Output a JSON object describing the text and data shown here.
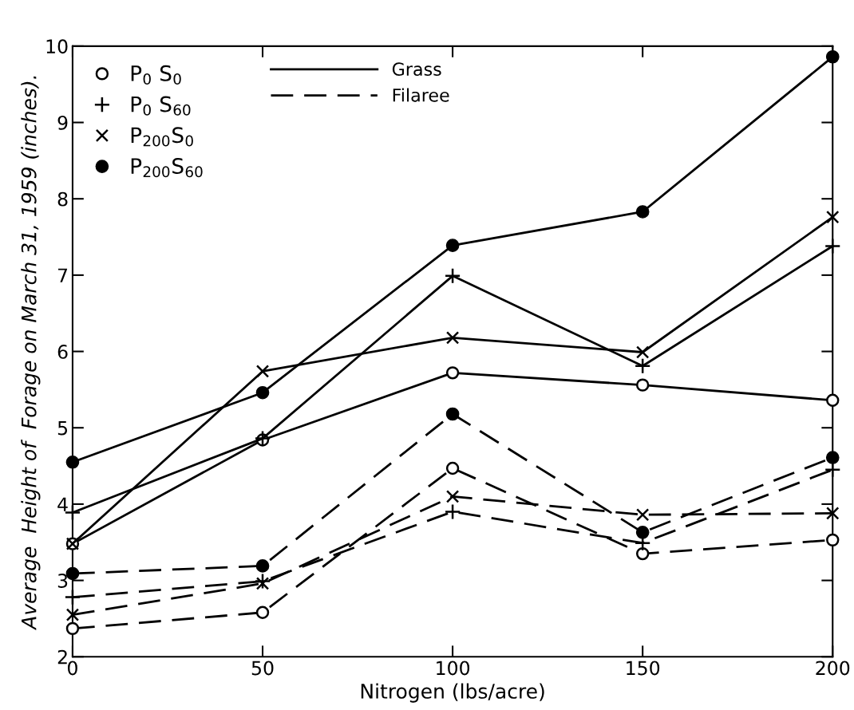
{
  "chart_data": {
    "type": "line",
    "xlabel": "Nitrogen (lbs/acre)",
    "ylabel": "Average  Height of  Forage on March 31, 1959 (inches).",
    "x": [
      0,
      50,
      100,
      150,
      200
    ],
    "xlim": [
      0,
      200
    ],
    "xticks": [
      0,
      50,
      100,
      150,
      200
    ],
    "ylim": [
      2,
      10
    ],
    "yticks": [
      2,
      3,
      4,
      5,
      6,
      7,
      8,
      9,
      10
    ],
    "grid": false,
    "legend": "top left",
    "annotations": [
      "Grass",
      "Filaree"
    ],
    "series": [
      {
        "name": "P$_{0}$ S$_{0}$",
        "color": "#000000",
        "marker": "circle",
        "line_style": "solid",
        "values": [
          3.48,
          4.84,
          5.72,
          5.56,
          5.36
        ]
      },
      {
        "name": "P$_{0}$ S$_{60}$",
        "color": "#000000",
        "marker": "cross",
        "line_style": "solid",
        "values": [
          3.89,
          4.86,
          6.99,
          5.81,
          7.38
        ]
      },
      {
        "name": "P$_{200}$S$_{0}$",
        "color": "#000000",
        "marker": "x",
        "line_style": "solid",
        "values": [
          3.48,
          5.74,
          6.18,
          5.99,
          7.76
        ]
      },
      {
        "name": "P$_{200}$S$_{60}$",
        "color": "#000000",
        "marker": "dot",
        "line_style": "solid",
        "values": [
          4.55,
          5.46,
          7.39,
          7.83,
          9.86
        ]
      },
      {
        "color": "#000000",
        "marker": "circle",
        "line_style": "dashed",
        "values": [
          2.37,
          2.58,
          4.47,
          3.35,
          3.53
        ]
      },
      {
        "color": "#000000",
        "marker": "cross",
        "line_style": "dashed",
        "values": [
          2.78,
          2.99,
          3.9,
          3.49,
          4.45
        ]
      },
      {
        "color": "#000000",
        "marker": "x",
        "line_style": "dashed",
        "values": [
          2.55,
          2.96,
          4.1,
          3.86,
          3.88
        ]
      },
      {
        "color": "#000000",
        "marker": "dot",
        "line_style": "dashed",
        "values": [
          3.09,
          3.19,
          5.18,
          3.63,
          4.61
        ]
      }
    ]
  }
}
